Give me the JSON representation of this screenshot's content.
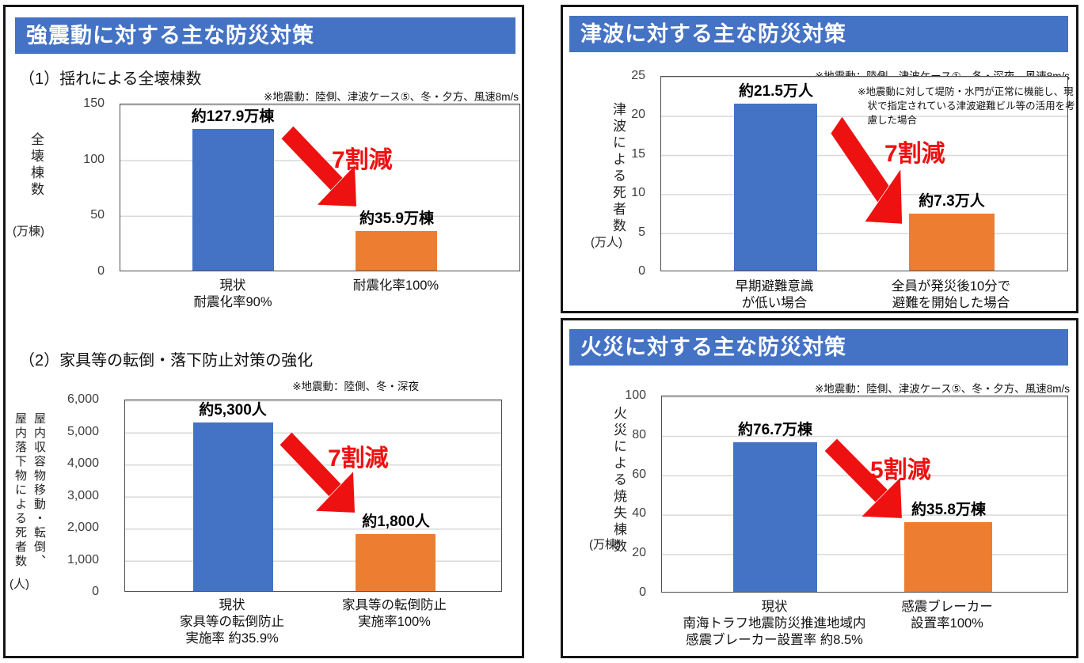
{
  "colors": {
    "header_bg": "#4472C4",
    "bar_current": "#4472C4",
    "bar_countermeasure": "#ED7D31",
    "reduction_red": "#ee1111",
    "gridline": "#d9d9d9"
  },
  "panels": [
    {
      "title": "強震動に対する主な防災対策"
    },
    {
      "title": "津波に対する主な防災対策"
    },
    {
      "title": "火災に対する主な防災対策"
    }
  ],
  "chart_data": [
    {
      "type": "bar",
      "panel": "強震動に対する主な防災対策",
      "title": "（1）揺れによる全壊棟数",
      "condition_note": "※地震動：陸側、津波ケース⑤、冬・夕方、風速8m/s",
      "ylabel_lines": [
        "全壊棟数"
      ],
      "yunit": "(万棟)",
      "ylim": [
        0,
        150
      ],
      "yticks": [
        "150",
        "100",
        "50",
        "0"
      ],
      "grid": true,
      "values": [
        127.9,
        35.9
      ],
      "bar_labels": [
        "約127.9万棟",
        "約35.9万棟"
      ],
      "bar_colors": [
        "#4472C4",
        "#ED7D31"
      ],
      "categories": [
        [
          "現状",
          "耐震化率90%"
        ],
        [
          "耐震化率100%"
        ]
      ],
      "annotation": "7割減"
    },
    {
      "type": "bar",
      "panel": "強震動に対する主な防災対策",
      "title": "（2）家具等の転倒・落下防止対策の強化",
      "condition_note": "※地震動：陸側、冬・深夜",
      "ylabel_lines": [
        "屋内収容物移動・転倒、",
        "屋内落下物による死者数"
      ],
      "yunit": "(人)",
      "ylim": [
        0,
        6000
      ],
      "yticks": [
        "6,000",
        "5,000",
        "4,000",
        "3,000",
        "2,000",
        "1,000",
        "0"
      ],
      "grid": true,
      "values": [
        5300,
        1800
      ],
      "bar_labels": [
        "約5,300人",
        "約1,800人"
      ],
      "bar_colors": [
        "#4472C4",
        "#ED7D31"
      ],
      "categories": [
        [
          "現状",
          "家具等の転倒防止",
          "実施率 約35.9%"
        ],
        [
          "家具等の転倒防止",
          "実施率100%"
        ]
      ],
      "annotation": "7割減"
    },
    {
      "type": "bar",
      "panel": "津波に対する主な防災対策",
      "title": "",
      "condition_note": "※地震動：陸側、津波ケース①、冬・深夜、風速8m/s",
      "inner_note": "※地震動に対して堤防・水門が正常に機能し、現状で指定されている津波避難ビル等の活用を考慮した場合",
      "ylabel_lines": [
        "津波による死者数"
      ],
      "yunit": "(万人)",
      "ylim": [
        0,
        25
      ],
      "yticks": [
        "25",
        "20",
        "15",
        "10",
        "5",
        "0"
      ],
      "grid": true,
      "values": [
        21.5,
        7.3
      ],
      "bar_labels": [
        "約21.5万人",
        "約7.3万人"
      ],
      "bar_colors": [
        "#4472C4",
        "#ED7D31"
      ],
      "categories": [
        [
          "早期避難意識",
          "が低い場合"
        ],
        [
          "全員が発災後10分で",
          "避難を開始した場合"
        ]
      ],
      "annotation": "7割減"
    },
    {
      "type": "bar",
      "panel": "火災に対する主な防災対策",
      "title": "",
      "condition_note": "※地震動：陸側、津波ケース⑤、冬・夕方、風速8m/s",
      "ylabel_lines": [
        "火災による焼失棟数"
      ],
      "yunit": "(万棟)",
      "ylim": [
        0,
        100
      ],
      "yticks": [
        "100",
        "80",
        "60",
        "40",
        "20",
        "0"
      ],
      "grid": true,
      "values": [
        76.7,
        35.8
      ],
      "bar_labels": [
        "約76.7万棟",
        "約35.8万棟"
      ],
      "bar_colors": [
        "#4472C4",
        "#ED7D31"
      ],
      "categories": [
        [
          "現状",
          "南海トラフ地震防災推進地域内",
          "感震ブレーカー設置率 約8.5%"
        ],
        [
          "感震ブレーカー",
          "設置率100%"
        ]
      ],
      "annotation": "5割減"
    }
  ]
}
